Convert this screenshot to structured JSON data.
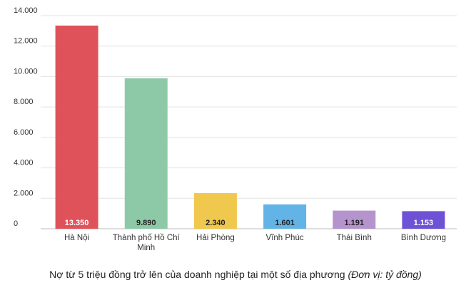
{
  "caption": {
    "text": "Nợ từ 5 triệu đồng trở lên của doanh nghiệp tại một số địa phương",
    "unit": "(Đơn vị: tỷ đồng)"
  },
  "chart_data": {
    "type": "bar",
    "title": "",
    "xlabel": "",
    "ylabel": "",
    "ylim": [
      0,
      14000
    ],
    "yticks": [
      0,
      2000,
      4000,
      6000,
      8000,
      10000,
      12000,
      14000
    ],
    "ytick_labels": [
      "0",
      "2.000",
      "4.000",
      "6.000",
      "8.000",
      "10.000",
      "12.000",
      "14.000"
    ],
    "grid": true,
    "legend": "none",
    "categories": [
      [
        "Hà Nội"
      ],
      [
        "Thành phố Hồ Chí",
        "Minh"
      ],
      [
        "Hải Phòng"
      ],
      [
        "Vĩnh Phúc"
      ],
      [
        "Thái Bình"
      ],
      [
        "Bình Dương"
      ]
    ],
    "values": [
      13350,
      9890,
      2340,
      1601,
      1191,
      1153
    ],
    "value_labels": [
      "13.350",
      "9.890",
      "2.340",
      "1.601",
      "1.191",
      "1.153"
    ],
    "colors": [
      "#e0525a",
      "#8ec9a7",
      "#f0c84e",
      "#62b4e6",
      "#b594ce",
      "#6e52d6"
    ],
    "label_colors": [
      "#ffffff",
      "#222222",
      "#222222",
      "#222222",
      "#222222",
      "#ffffff"
    ]
  }
}
